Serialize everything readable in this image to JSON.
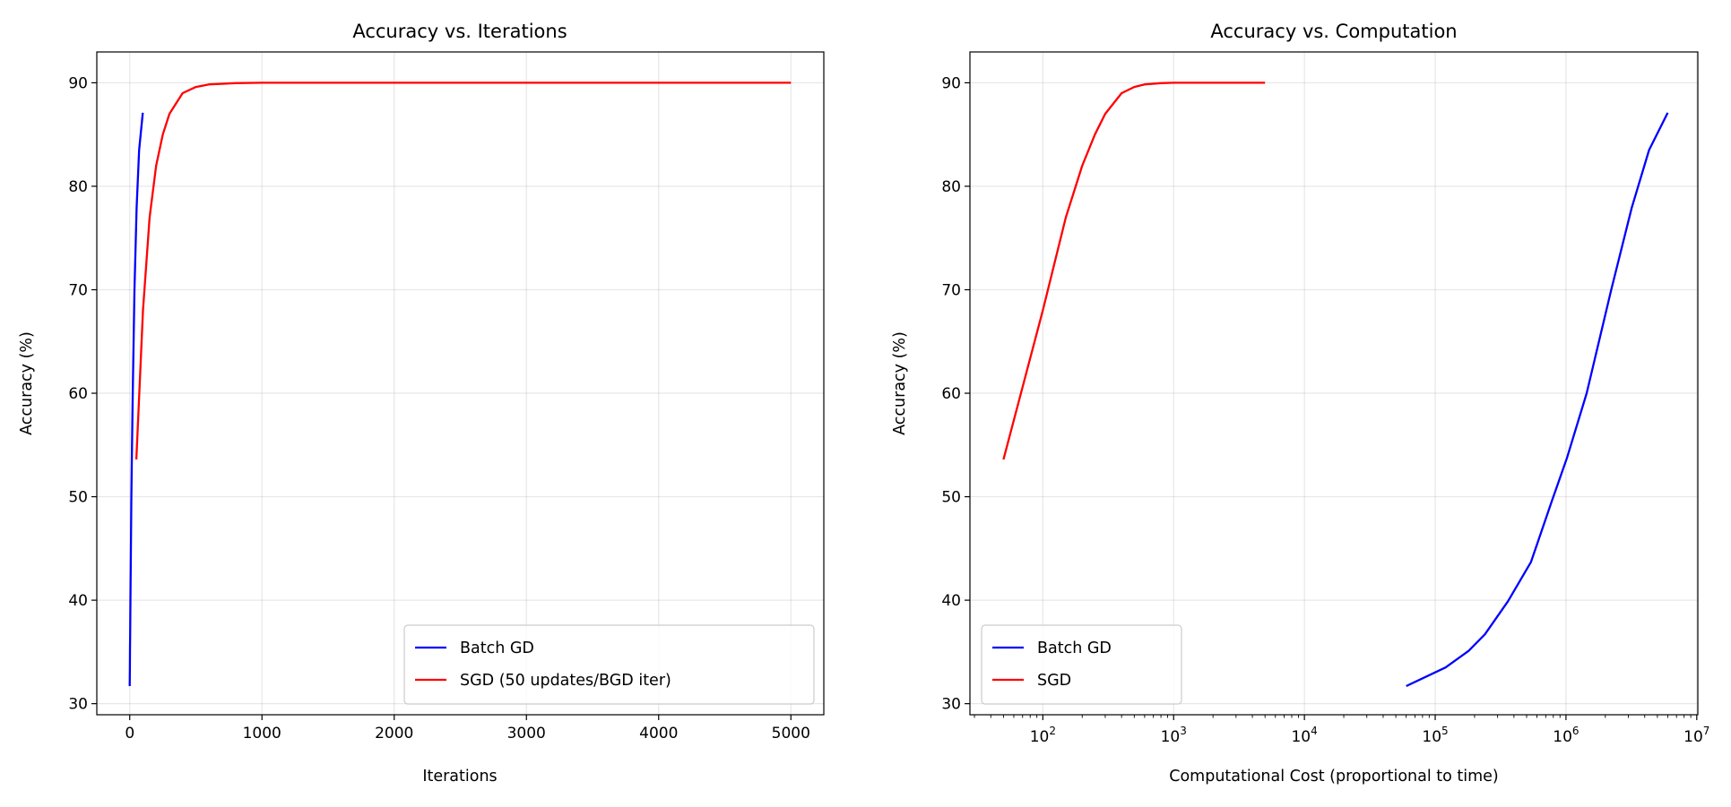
{
  "chart_data": [
    {
      "type": "line",
      "title": "Accuracy vs. Iterations",
      "xlabel": "Iterations",
      "ylabel": "Accuracy (%)",
      "xscale": "linear",
      "xlim": [
        -249,
        5249
      ],
      "ylim": [
        28.93,
        92.98
      ],
      "xticks": [
        0,
        1000,
        2000,
        3000,
        4000,
        5000
      ],
      "xtick_labels": [
        "0",
        "1000",
        "2000",
        "3000",
        "4000",
        "5000"
      ],
      "yticks": [
        30,
        40,
        50,
        60,
        70,
        80,
        90
      ],
      "ytick_labels": [
        "30",
        "40",
        "50",
        "60",
        "70",
        "80",
        "90"
      ],
      "grid": true,
      "legend_position": "lower-right",
      "series": [
        {
          "name": "Batch GD",
          "color": "#0000ff",
          "x": [
            0,
            1,
            2,
            3,
            5,
            8,
            12,
            16,
            23,
            36,
            52,
            71,
            99
          ],
          "y": [
            31.7,
            33.5,
            35.1,
            36.7,
            39.9,
            43.7,
            49.6,
            53.8,
            60.0,
            70.0,
            77.9,
            83.5,
            87.1
          ]
        },
        {
          "name": "SGD (50 updates/BGD iter)",
          "color": "#ff0000",
          "x": [
            50,
            100,
            150,
            200,
            250,
            300,
            400,
            500,
            600,
            800,
            1000,
            2000,
            5000
          ],
          "y": [
            53.6,
            68.0,
            77.0,
            82.0,
            85.0,
            87.0,
            89.0,
            89.6,
            89.85,
            89.97,
            90.0,
            90.0,
            90.0
          ]
        }
      ]
    },
    {
      "type": "line",
      "title": "Accuracy vs. Computation",
      "xlabel": "Computational Cost (proportional to time)",
      "ylabel": "Accuracy (%)",
      "xscale": "log",
      "xlim": [
        27.7,
        10190000
      ],
      "ylim": [
        28.93,
        92.98
      ],
      "xticks": [
        100,
        1000,
        10000,
        100000,
        1000000,
        10000000
      ],
      "xtick_labels": [
        [
          "10",
          "2"
        ],
        [
          "10",
          "3"
        ],
        [
          "10",
          "4"
        ],
        [
          "10",
          "5"
        ],
        [
          "10",
          "6"
        ],
        [
          "10",
          "7"
        ]
      ],
      "yticks": [
        30,
        40,
        50,
        60,
        70,
        80,
        90
      ],
      "ytick_labels": [
        "30",
        "40",
        "50",
        "60",
        "70",
        "80",
        "90"
      ],
      "grid": true,
      "legend_position": "lower-left",
      "series": [
        {
          "name": "Batch GD",
          "color": "#0000ff",
          "x": [
            60000,
            120000,
            180000,
            240000,
            360000,
            540000,
            780000,
            1020000,
            1440000,
            2220000,
            3180000,
            4320000,
            6000000
          ],
          "y": [
            31.7,
            33.5,
            35.1,
            36.7,
            39.9,
            43.7,
            49.6,
            53.8,
            60.0,
            70.0,
            77.9,
            83.5,
            87.1
          ]
        },
        {
          "name": "SGD",
          "color": "#ff0000",
          "x": [
            50,
            100,
            150,
            200,
            250,
            300,
            400,
            500,
            600,
            800,
            1000,
            2000,
            5000
          ],
          "y": [
            53.6,
            68.0,
            77.0,
            82.0,
            85.0,
            87.0,
            89.0,
            89.6,
            89.85,
            89.97,
            90.0,
            90.0,
            90.0
          ]
        }
      ]
    }
  ]
}
